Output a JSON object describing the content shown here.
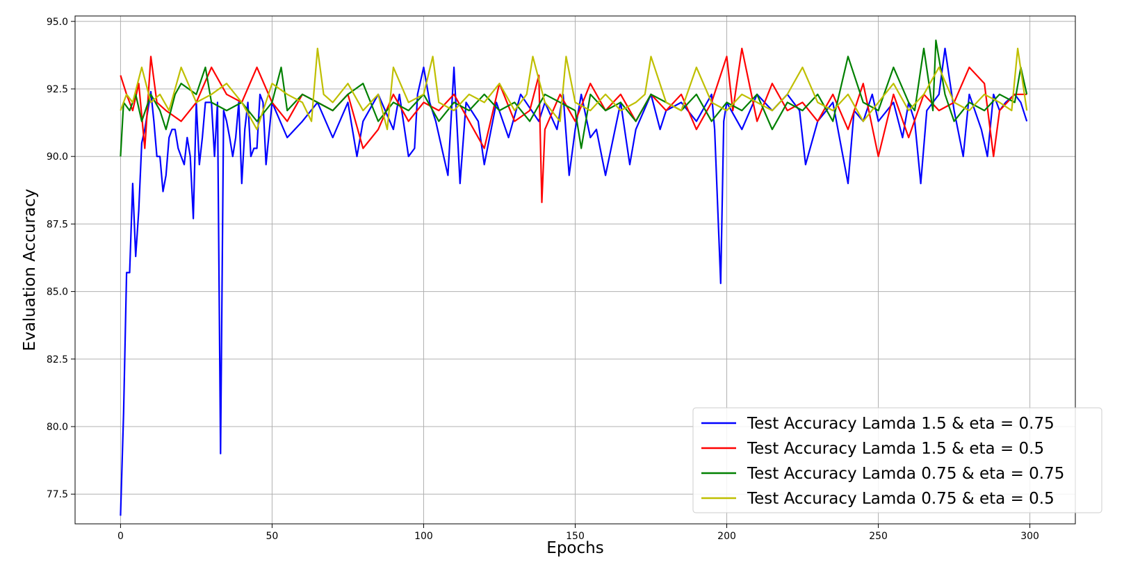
{
  "chart_data": {
    "type": "line",
    "title": "",
    "xlabel": "Epochs",
    "ylabel": "Evaluation Accuracy",
    "xlim": [
      -15,
      315
    ],
    "ylim": [
      76.4,
      95.2
    ],
    "xticks": [
      0,
      50,
      100,
      150,
      200,
      250,
      300
    ],
    "xtick_labels": [
      "0",
      "50",
      "100",
      "150",
      "200",
      "250",
      "300"
    ],
    "yticks": [
      77.5,
      80.0,
      82.5,
      85.0,
      87.5,
      90.0,
      92.5,
      95.0
    ],
    "ytick_labels": [
      "77.5",
      "80.0",
      "82.5",
      "85.0",
      "87.5",
      "90.0",
      "92.5",
      "95.0"
    ],
    "grid": true,
    "legend_position": "lower-right",
    "series": [
      {
        "name": "Test Accuracy Lamda 1.5 & eta = 0.75",
        "color": "#0000ff",
        "x": [
          0,
          1,
          2,
          3,
          4,
          5,
          6,
          7,
          8,
          10,
          11,
          12,
          13,
          14,
          15,
          16,
          17,
          18,
          19,
          20,
          21,
          22,
          23,
          24,
          25,
          26,
          27,
          28,
          30,
          31,
          32,
          33,
          34,
          35,
          36,
          37,
          38,
          39,
          40,
          41,
          42,
          43,
          44,
          45,
          46,
          47,
          48,
          50,
          55,
          60,
          65,
          70,
          75,
          78,
          80,
          85,
          90,
          92,
          95,
          97,
          98,
          100,
          102,
          104,
          108,
          110,
          112,
          114,
          118,
          120,
          124,
          128,
          132,
          138,
          140,
          144,
          146,
          148,
          150,
          152,
          155,
          157,
          160,
          165,
          168,
          170,
          175,
          178,
          180,
          185,
          190,
          195,
          196,
          198,
          199,
          200,
          205,
          210,
          215,
          220,
          224,
          226,
          230,
          235,
          240,
          242,
          245,
          248,
          250,
          255,
          258,
          260,
          262,
          264,
          266,
          268,
          270,
          272,
          275,
          278,
          280,
          284,
          286,
          288,
          290,
          292,
          295,
          297,
          299
        ],
        "y": [
          76.7,
          80.5,
          85.7,
          85.7,
          89.0,
          86.3,
          88.0,
          90.5,
          91.0,
          92.4,
          91.3,
          90.0,
          90.0,
          88.7,
          89.3,
          90.7,
          91.0,
          91.0,
          90.3,
          90.0,
          89.7,
          90.7,
          90.0,
          87.7,
          92.0,
          89.7,
          90.7,
          92.0,
          92.0,
          90.0,
          92.0,
          79.0,
          91.7,
          91.3,
          90.7,
          90.0,
          90.7,
          92.0,
          89.0,
          91.0,
          92.0,
          90.0,
          90.3,
          90.3,
          92.3,
          92.0,
          89.7,
          92.0,
          90.7,
          91.3,
          92.0,
          90.7,
          92.0,
          90.0,
          91.3,
          92.3,
          91.0,
          92.3,
          90.0,
          90.3,
          92.3,
          93.3,
          92.0,
          91.3,
          89.3,
          93.3,
          89.0,
          92.0,
          91.3,
          89.7,
          92.0,
          90.7,
          92.3,
          91.3,
          92.0,
          91.0,
          92.3,
          89.3,
          91.0,
          92.3,
          90.7,
          91.0,
          89.3,
          92.0,
          89.7,
          91.0,
          92.3,
          91.0,
          91.7,
          92.0,
          91.3,
          92.3,
          91.0,
          85.3,
          91.3,
          92.0,
          91.0,
          92.3,
          91.7,
          92.3,
          91.7,
          89.7,
          91.3,
          92.0,
          89.0,
          91.7,
          91.3,
          92.3,
          91.3,
          92.0,
          90.7,
          92.0,
          91.3,
          89.0,
          91.7,
          92.0,
          92.3,
          94.0,
          91.7,
          90.0,
          92.3,
          91.0,
          90.0,
          92.3,
          91.7,
          92.0,
          92.3,
          92.0,
          91.3
        ]
      },
      {
        "name": "Test Accuracy Lamda 1.5 & eta = 0.5",
        "color": "#ff0000",
        "x": [
          0,
          2,
          4,
          6,
          8,
          10,
          12,
          15,
          20,
          25,
          30,
          35,
          40,
          45,
          50,
          55,
          60,
          65,
          70,
          75,
          80,
          85,
          90,
          95,
          100,
          105,
          110,
          115,
          120,
          125,
          130,
          135,
          138,
          139,
          140,
          145,
          150,
          155,
          160,
          165,
          170,
          175,
          180,
          185,
          190,
          195,
          200,
          202,
          205,
          210,
          215,
          220,
          225,
          230,
          235,
          240,
          245,
          250,
          255,
          260,
          265,
          270,
          275,
          280,
          285,
          288,
          290,
          295,
          299
        ],
        "y": [
          93.0,
          92.3,
          91.7,
          92.7,
          90.3,
          93.7,
          92.0,
          91.7,
          91.3,
          92.0,
          93.3,
          92.3,
          92.0,
          93.3,
          92.0,
          91.3,
          92.3,
          92.0,
          91.7,
          92.3,
          90.3,
          91.0,
          92.3,
          91.3,
          92.0,
          91.7,
          92.3,
          91.3,
          90.3,
          92.7,
          91.3,
          91.7,
          93.0,
          88.3,
          91.0,
          92.3,
          91.3,
          92.7,
          91.7,
          92.3,
          91.3,
          92.3,
          91.7,
          92.3,
          91.0,
          92.0,
          93.7,
          91.7,
          94.0,
          91.3,
          92.7,
          91.7,
          92.0,
          91.3,
          92.3,
          91.0,
          92.7,
          90.0,
          92.3,
          90.7,
          92.3,
          91.7,
          92.0,
          93.3,
          92.7,
          90.0,
          91.7,
          92.3,
          92.3
        ]
      },
      {
        "name": "Test Accuracy Lamda 0.75 & eta = 0.75",
        "color": "#008000",
        "x": [
          0,
          1,
          3,
          5,
          7,
          10,
          13,
          15,
          18,
          20,
          25,
          28,
          30,
          35,
          40,
          45,
          50,
          53,
          55,
          60,
          65,
          70,
          75,
          80,
          85,
          90,
          95,
          100,
          105,
          110,
          115,
          120,
          125,
          130,
          135,
          140,
          145,
          150,
          152,
          155,
          160,
          165,
          170,
          175,
          180,
          185,
          190,
          195,
          200,
          205,
          210,
          215,
          220,
          225,
          230,
          235,
          240,
          245,
          250,
          255,
          260,
          262,
          265,
          268,
          269,
          272,
          275,
          280,
          285,
          290,
          295,
          297,
          299
        ],
        "y": [
          90.0,
          92.0,
          91.7,
          92.3,
          91.3,
          92.3,
          91.7,
          91.0,
          92.3,
          92.7,
          92.3,
          93.3,
          92.0,
          91.7,
          92.0,
          91.3,
          92.0,
          93.3,
          91.7,
          92.3,
          92.0,
          91.7,
          92.3,
          92.7,
          91.3,
          92.0,
          91.7,
          92.3,
          91.3,
          92.0,
          91.7,
          92.3,
          91.7,
          92.0,
          91.3,
          92.3,
          92.0,
          91.7,
          90.3,
          92.3,
          91.7,
          92.0,
          91.3,
          92.3,
          92.0,
          91.7,
          92.3,
          91.3,
          92.0,
          91.7,
          92.3,
          91.0,
          92.0,
          91.7,
          92.3,
          91.3,
          93.7,
          92.0,
          91.7,
          93.3,
          92.0,
          91.7,
          94.0,
          91.7,
          94.3,
          92.3,
          91.3,
          92.0,
          91.7,
          92.3,
          92.0,
          93.3,
          92.3
        ]
      },
      {
        "name": "Test Accuracy Lamda 0.75 & eta = 0.5",
        "color": "#bfbf00",
        "x": [
          0,
          2,
          4,
          7,
          10,
          13,
          16,
          20,
          25,
          30,
          35,
          40,
          45,
          50,
          55,
          60,
          63,
          65,
          67,
          70,
          75,
          80,
          85,
          88,
          90,
          95,
          100,
          103,
          105,
          110,
          115,
          120,
          125,
          130,
          134,
          136,
          140,
          145,
          147,
          150,
          155,
          160,
          165,
          170,
          173,
          175,
          180,
          185,
          190,
          195,
          200,
          205,
          210,
          215,
          220,
          225,
          230,
          235,
          240,
          245,
          250,
          255,
          260,
          265,
          270,
          275,
          280,
          285,
          290,
          294,
          296,
          299
        ],
        "y": [
          91.7,
          92.3,
          92.0,
          93.3,
          92.0,
          92.3,
          91.7,
          93.3,
          92.0,
          92.3,
          92.7,
          92.0,
          91.0,
          92.7,
          92.3,
          92.0,
          91.3,
          94.0,
          92.3,
          92.0,
          92.7,
          91.7,
          92.3,
          91.0,
          93.3,
          92.0,
          92.3,
          93.7,
          92.0,
          91.7,
          92.3,
          92.0,
          92.7,
          91.7,
          92.3,
          93.7,
          92.0,
          91.3,
          93.7,
          92.0,
          91.7,
          92.3,
          91.7,
          92.0,
          92.3,
          93.7,
          92.0,
          91.7,
          93.3,
          92.0,
          91.7,
          92.3,
          92.0,
          91.7,
          92.3,
          93.3,
          92.0,
          91.7,
          92.3,
          91.3,
          92.0,
          92.7,
          91.7,
          92.3,
          93.3,
          92.0,
          91.7,
          92.3,
          92.0,
          91.7,
          94.0,
          91.7
        ]
      }
    ]
  }
}
